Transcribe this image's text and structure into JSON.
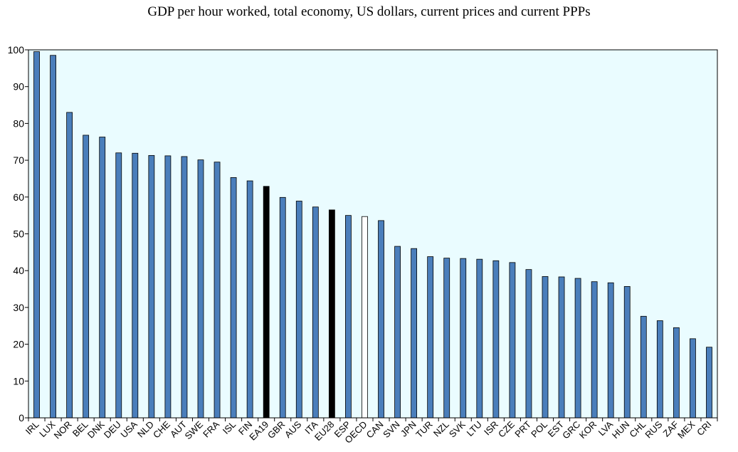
{
  "chart_data": {
    "type": "bar",
    "title": "GDP per hour worked, total economy, US dollars, current prices and current PPPs",
    "xlabel": "",
    "ylabel": "",
    "ylim": [
      0,
      100
    ],
    "yticks": [
      0,
      10,
      20,
      30,
      40,
      50,
      60,
      70,
      80,
      90,
      100
    ],
    "grid": false,
    "legend": "none",
    "colors": {
      "default": "#4a7ebb",
      "highlight": "#000000",
      "oecd": "#ffffff",
      "background": "#eafcff"
    },
    "categories": [
      "IRL",
      "LUX",
      "NOR",
      "BEL",
      "DNK",
      "DEU",
      "USA",
      "NLD",
      "CHE",
      "AUT",
      "SWE",
      "FRA",
      "ISL",
      "FIN",
      "EA19",
      "GBR",
      "AUS",
      "ITA",
      "EU28",
      "ESP",
      "OECD",
      "CAN",
      "SVN",
      "JPN",
      "TUR",
      "NZL",
      "SVK",
      "LTU",
      "ISR",
      "CZE",
      "PRT",
      "POL",
      "EST",
      "GRC",
      "KOR",
      "LVA",
      "HUN",
      "CHL",
      "RUS",
      "ZAF",
      "MEX",
      "CRI"
    ],
    "values": [
      99.5,
      98.5,
      83.0,
      76.8,
      76.3,
      72.0,
      71.9,
      71.3,
      71.2,
      71.0,
      70.1,
      69.5,
      65.3,
      64.4,
      62.9,
      59.9,
      58.9,
      57.3,
      56.5,
      55.0,
      54.7,
      53.6,
      46.6,
      46.0,
      43.8,
      43.4,
      43.3,
      43.1,
      42.7,
      42.2,
      40.3,
      38.4,
      38.3,
      37.9,
      37.0,
      36.7,
      35.7,
      27.6,
      26.4,
      24.5,
      21.5,
      19.2
    ],
    "highlight": [
      "EA19",
      "EU28"
    ],
    "outlined": [
      "OECD"
    ]
  }
}
